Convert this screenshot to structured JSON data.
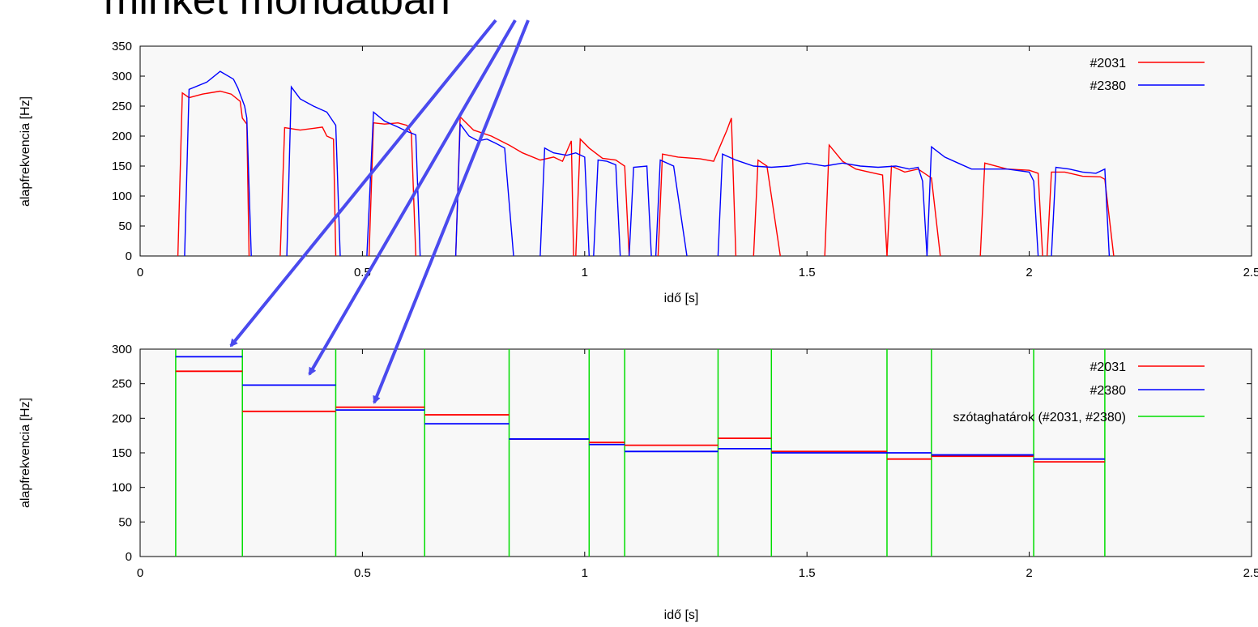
{
  "slide": {
    "title": "minket mondatban"
  },
  "colors": {
    "s2031": "#ff0000",
    "s2380": "#0000ff",
    "bounds": "#00dd00",
    "arrow": "#4a4aee",
    "plot_bg": "#f8f8f8"
  },
  "chart_data": [
    {
      "type": "line",
      "xlabel": "idő [s]",
      "ylabel": "alapfrekvencia [Hz]",
      "xlim": [
        0,
        2.5
      ],
      "ylim": [
        0,
        350
      ],
      "xticks": [
        "0",
        "0.5",
        "1",
        "1.5",
        "2",
        "2.5"
      ],
      "yticks": [
        "0",
        "50",
        "100",
        "150",
        "200",
        "250",
        "300",
        "350"
      ],
      "legend_position": "top-right",
      "series": [
        {
          "name": "#2031",
          "segments": [
            [
              [
                0.085,
                0
              ],
              [
                0.095,
                272
              ],
              [
                0.11,
                264
              ],
              [
                0.14,
                270
              ],
              [
                0.18,
                275
              ],
              [
                0.205,
                270
              ],
              [
                0.225,
                258
              ],
              [
                0.23,
                230
              ],
              [
                0.24,
                220
              ],
              [
                0.245,
                0
              ]
            ],
            [
              [
                0.315,
                0
              ],
              [
                0.325,
                214
              ],
              [
                0.36,
                210
              ],
              [
                0.39,
                213
              ],
              [
                0.41,
                215
              ],
              [
                0.42,
                200
              ],
              [
                0.435,
                195
              ],
              [
                0.44,
                0
              ]
            ],
            [
              [
                0.515,
                0
              ],
              [
                0.525,
                222
              ],
              [
                0.55,
                220
              ],
              [
                0.58,
                222
              ],
              [
                0.6,
                218
              ],
              [
                0.61,
                205
              ],
              [
                0.62,
                0
              ]
            ],
            [
              [
                0.71,
                0
              ],
              [
                0.72,
                232
              ],
              [
                0.75,
                210
              ],
              [
                0.79,
                200
              ],
              [
                0.83,
                185
              ],
              [
                0.86,
                172
              ],
              [
                0.9,
                160
              ],
              [
                0.93,
                165
              ],
              [
                0.95,
                158
              ],
              [
                0.97,
                192
              ],
              [
                0.975,
                0
              ]
            ],
            [
              [
                0.98,
                0
              ],
              [
                0.99,
                195
              ],
              [
                1.01,
                180
              ],
              [
                1.04,
                163
              ],
              [
                1.07,
                160
              ],
              [
                1.09,
                150
              ],
              [
                1.1,
                0
              ]
            ],
            [
              [
                1.165,
                0
              ],
              [
                1.175,
                170
              ],
              [
                1.21,
                165
              ],
              [
                1.26,
                162
              ],
              [
                1.29,
                158
              ],
              [
                1.32,
                210
              ],
              [
                1.33,
                230
              ],
              [
                1.34,
                0
              ]
            ],
            [
              [
                1.38,
                0
              ],
              [
                1.39,
                160
              ],
              [
                1.41,
                150
              ],
              [
                1.44,
                0
              ]
            ],
            [
              [
                1.54,
                0
              ],
              [
                1.55,
                185
              ],
              [
                1.58,
                158
              ],
              [
                1.61,
                145
              ],
              [
                1.64,
                140
              ],
              [
                1.67,
                135
              ],
              [
                1.68,
                0
              ]
            ],
            [
              [
                1.68,
                0
              ],
              [
                1.69,
                150
              ],
              [
                1.72,
                140
              ],
              [
                1.75,
                145
              ],
              [
                1.78,
                130
              ],
              [
                1.8,
                0
              ]
            ],
            [
              [
                1.89,
                0
              ],
              [
                1.9,
                155
              ],
              [
                1.95,
                145
              ],
              [
                2.0,
                143
              ],
              [
                2.02,
                138
              ],
              [
                2.03,
                0
              ]
            ],
            [
              [
                2.04,
                0
              ],
              [
                2.05,
                140
              ],
              [
                2.08,
                140
              ],
              [
                2.12,
                133
              ],
              [
                2.16,
                132
              ],
              [
                2.17,
                128
              ],
              [
                2.19,
                0
              ]
            ]
          ]
        },
        {
          "name": "#2380",
          "segments": [
            [
              [
                0.1,
                0
              ],
              [
                0.11,
                278
              ],
              [
                0.15,
                290
              ],
              [
                0.18,
                308
              ],
              [
                0.21,
                295
              ],
              [
                0.22,
                280
              ],
              [
                0.235,
                250
              ],
              [
                0.24,
                230
              ],
              [
                0.25,
                0
              ]
            ],
            [
              [
                0.33,
                0
              ],
              [
                0.34,
                282
              ],
              [
                0.36,
                262
              ],
              [
                0.39,
                250
              ],
              [
                0.42,
                240
              ],
              [
                0.44,
                218
              ],
              [
                0.45,
                0
              ]
            ],
            [
              [
                0.51,
                0
              ],
              [
                0.525,
                240
              ],
              [
                0.55,
                225
              ],
              [
                0.58,
                215
              ],
              [
                0.6,
                208
              ],
              [
                0.62,
                202
              ],
              [
                0.63,
                0
              ]
            ],
            [
              [
                0.71,
                0
              ],
              [
                0.72,
                220
              ],
              [
                0.74,
                200
              ],
              [
                0.76,
                192
              ],
              [
                0.78,
                195
              ],
              [
                0.8,
                188
              ],
              [
                0.82,
                180
              ],
              [
                0.84,
                0
              ]
            ],
            [
              [
                0.9,
                0
              ],
              [
                0.91,
                180
              ],
              [
                0.93,
                172
              ],
              [
                0.96,
                168
              ],
              [
                0.98,
                172
              ],
              [
                1.0,
                165
              ],
              [
                1.01,
                0
              ]
            ],
            [
              [
                1.02,
                0
              ],
              [
                1.03,
                160
              ],
              [
                1.05,
                158
              ],
              [
                1.07,
                152
              ],
              [
                1.08,
                0
              ]
            ],
            [
              [
                1.1,
                0
              ],
              [
                1.11,
                148
              ],
              [
                1.14,
                150
              ],
              [
                1.15,
                0
              ]
            ],
            [
              [
                1.16,
                0
              ],
              [
                1.17,
                160
              ],
              [
                1.2,
                150
              ],
              [
                1.23,
                0
              ]
            ],
            [
              [
                1.3,
                0
              ],
              [
                1.31,
                170
              ],
              [
                1.34,
                160
              ],
              [
                1.38,
                150
              ],
              [
                1.42,
                148
              ],
              [
                1.46,
                150
              ],
              [
                1.5,
                155
              ],
              [
                1.54,
                150
              ],
              [
                1.58,
                155
              ],
              [
                1.62,
                150
              ],
              [
                1.66,
                148
              ],
              [
                1.7,
                150
              ],
              [
                1.73,
                145
              ],
              [
                1.75,
                148
              ],
              [
                1.76,
                125
              ],
              [
                1.77,
                0
              ]
            ],
            [
              [
                1.77,
                0
              ],
              [
                1.78,
                182
              ],
              [
                1.81,
                165
              ],
              [
                1.84,
                155
              ],
              [
                1.87,
                145
              ],
              [
                1.9,
                145
              ],
              [
                1.95,
                145
              ],
              [
                2.0,
                140
              ],
              [
                2.01,
                125
              ],
              [
                2.02,
                0
              ]
            ],
            [
              [
                2.05,
                0
              ],
              [
                2.06,
                148
              ],
              [
                2.09,
                145
              ],
              [
                2.12,
                140
              ],
              [
                2.15,
                138
              ],
              [
                2.17,
                145
              ],
              [
                2.18,
                0
              ]
            ]
          ]
        }
      ]
    },
    {
      "type": "line",
      "xlabel": "idő [s]",
      "ylabel": "alapfrekvencia [Hz]",
      "xlim": [
        0,
        2.5
      ],
      "ylim": [
        0,
        300
      ],
      "xticks": [
        "0",
        "0.5",
        "1",
        "1.5",
        "2",
        "2.5"
      ],
      "yticks": [
        "0",
        "50",
        "100",
        "150",
        "200",
        "250",
        "300"
      ],
      "legend_position": "top-right",
      "boundaries_name": "szótaghatárok (#2031, #2380)",
      "boundaries": [
        0.08,
        0.23,
        0.44,
        0.64,
        0.83,
        1.01,
        1.09,
        1.3,
        1.42,
        1.68,
        1.78,
        2.01,
        2.17
      ],
      "series": [
        {
          "name": "#2031",
          "values": [
            268,
            210,
            216,
            205,
            170,
            165,
            161,
            171,
            152,
            141,
            145,
            137
          ]
        },
        {
          "name": "#2380",
          "values": [
            289,
            248,
            212,
            192,
            170,
            162,
            152,
            156,
            150,
            150,
            147,
            141
          ]
        }
      ]
    }
  ]
}
